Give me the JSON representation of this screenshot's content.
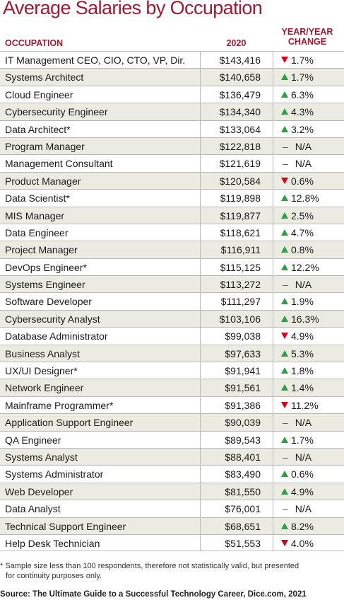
{
  "title": "Average Salaries by Occupation",
  "headers": {
    "occupation": "OCCUPATION",
    "year": "2020",
    "change_line1": "YEAR/YEAR",
    "change_line2": "CHANGE"
  },
  "colors": {
    "title": "#9b1c31",
    "up": "#2e9e47",
    "down": "#d0021b",
    "alt_row": "#ebebe2"
  },
  "rows": [
    {
      "occupation": "IT Management CEO, CIO, CTO, VP, Dir.",
      "salary": "$143,416",
      "direction": "down",
      "change": "1.7%"
    },
    {
      "occupation": "Systems Architect",
      "salary": "$140,658",
      "direction": "up",
      "change": "1.7%"
    },
    {
      "occupation": "Cloud Engineer",
      "salary": "$136,479",
      "direction": "up",
      "change": "6.3%"
    },
    {
      "occupation": "Cybersecurity Engineer",
      "salary": "$134,340",
      "direction": "up",
      "change": "4.3%"
    },
    {
      "occupation": "Data Architect*",
      "salary": "$133,064",
      "direction": "up",
      "change": "3.2%"
    },
    {
      "occupation": "Program Manager",
      "salary": "$122,818",
      "direction": "none",
      "change": "N/A"
    },
    {
      "occupation": "Management Consultant",
      "salary": "$121,619",
      "direction": "none",
      "change": "N/A"
    },
    {
      "occupation": "Product Manager",
      "salary": "$120,584",
      "direction": "down",
      "change": "0.6%"
    },
    {
      "occupation": "Data Scientist*",
      "salary": "$119,898",
      "direction": "up",
      "change": "12.8%"
    },
    {
      "occupation": "MIS Manager",
      "salary": "$119,877",
      "direction": "up",
      "change": "2.5%"
    },
    {
      "occupation": "Data Engineer",
      "salary": "$118,621",
      "direction": "up",
      "change": "4.7%"
    },
    {
      "occupation": "Project Manager",
      "salary": "$116,911",
      "direction": "up",
      "change": "0.8%"
    },
    {
      "occupation": "DevOps Engineer*",
      "salary": "$115,125",
      "direction": "up",
      "change": "12.2%"
    },
    {
      "occupation": "Systems Engineer",
      "salary": "$113,272",
      "direction": "none",
      "change": "N/A"
    },
    {
      "occupation": "Software Developer",
      "salary": "$111,297",
      "direction": "up",
      "change": "1.9%"
    },
    {
      "occupation": "Cybersecurity Analyst",
      "salary": "$103,106",
      "direction": "up",
      "change": "16.3%"
    },
    {
      "occupation": "Database Administrator",
      "salary": "$99,038",
      "direction": "down",
      "change": "4.9%"
    },
    {
      "occupation": "Business Analyst",
      "salary": "$97,633",
      "direction": "up",
      "change": "5.3%"
    },
    {
      "occupation": "UX/UI Designer*",
      "salary": "$91,941",
      "direction": "up",
      "change": "1.8%"
    },
    {
      "occupation": "Network Engineer",
      "salary": "$91,561",
      "direction": "up",
      "change": "1.4%"
    },
    {
      "occupation": "Mainframe Programmer*",
      "salary": "$91,386",
      "direction": "down",
      "change": "11.2%"
    },
    {
      "occupation": "Application Support Engineer",
      "salary": "$90,039",
      "direction": "none",
      "change": "N/A"
    },
    {
      "occupation": "QA Engineer",
      "salary": "$89,543",
      "direction": "up",
      "change": "1.7%"
    },
    {
      "occupation": "Systems Analyst",
      "salary": "$88,401",
      "direction": "none",
      "change": "N/A"
    },
    {
      "occupation": "Systems Administrator",
      "salary": "$83,490",
      "direction": "up",
      "change": "0.6%"
    },
    {
      "occupation": "Web Developer",
      "salary": "$81,550",
      "direction": "up",
      "change": "4.9%"
    },
    {
      "occupation": "Data Analyst",
      "salary": "$76,001",
      "direction": "none",
      "change": "N/A"
    },
    {
      "occupation": "Technical Support Engineer",
      "salary": "$68,651",
      "direction": "up",
      "change": "8.2%"
    },
    {
      "occupation": "Help Desk Technician",
      "salary": "$51,553",
      "direction": "down",
      "change": "4.0%"
    }
  ],
  "footnote_line1": "* Sample size less than 100 respondents, therefore not statistically valid, but presented",
  "footnote_line2": "for continuity purposes only.",
  "source": "Source: The Ultimate Guide to a Successful Technology Career, Dice.com, 2021"
}
